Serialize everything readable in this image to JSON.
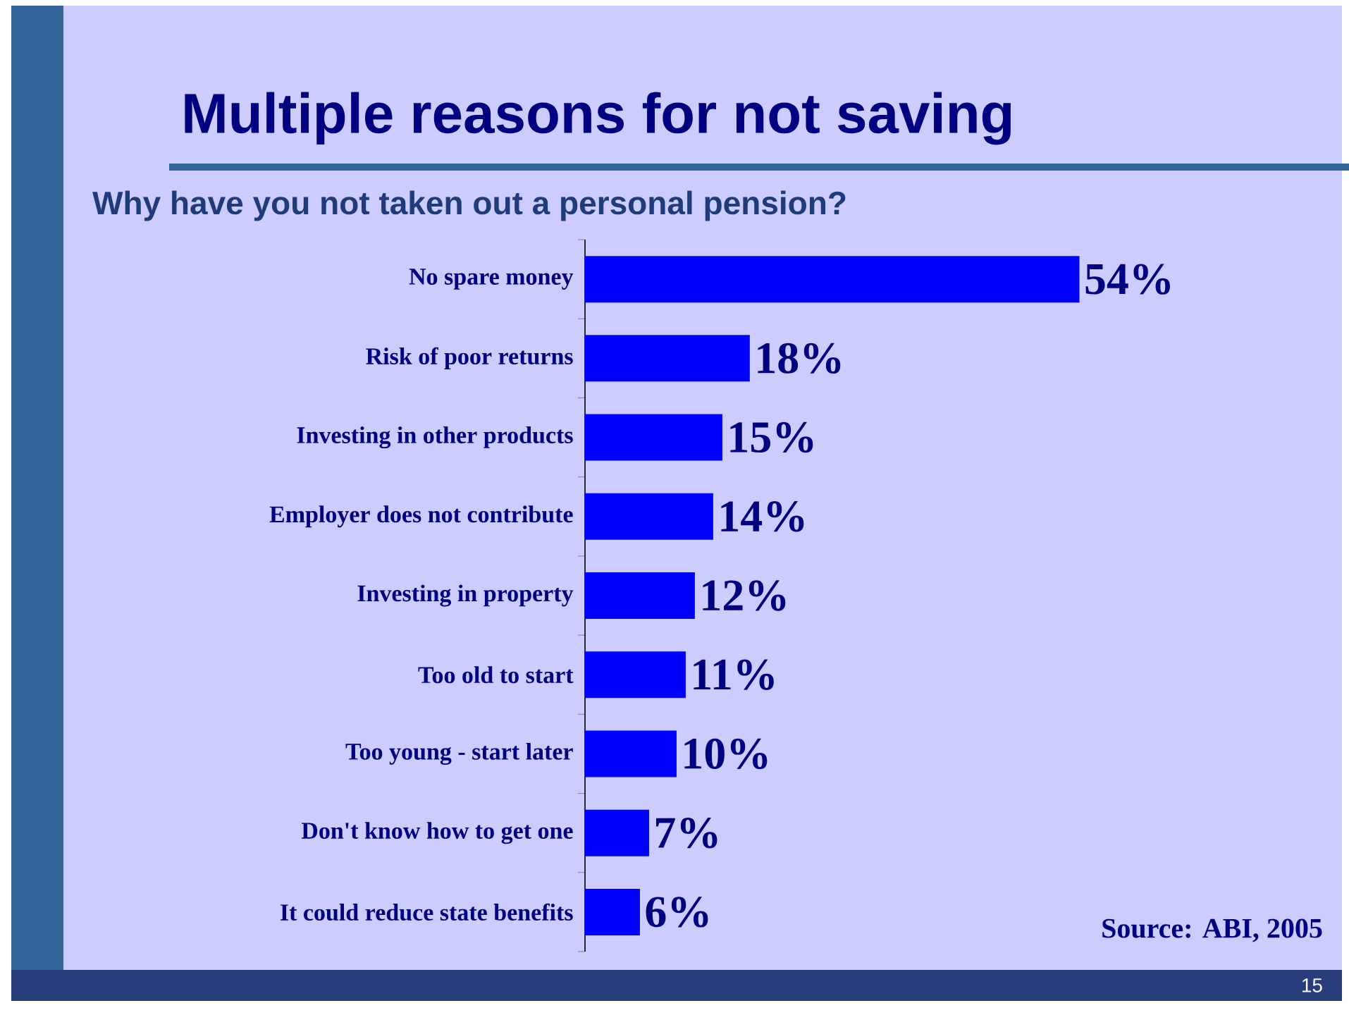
{
  "chart_data": {
    "type": "bar",
    "orientation": "horizontal",
    "title": "Multiple reasons for not saving",
    "subtitle": "Why have you not taken out a personal pension?",
    "categories": [
      "No spare money",
      "Risk of poor returns",
      "Investing in other products",
      "Employer does not contribute",
      "Investing in property",
      "Too old to start",
      "Too young - start later",
      "Don't know how to get one",
      "It could reduce state benefits"
    ],
    "values": [
      54,
      18,
      15,
      14,
      12,
      11,
      10,
      7,
      6
    ],
    "value_labels": [
      "54%",
      "18%",
      "15%",
      "14%",
      "12%",
      "11%",
      "10%",
      "7%",
      "6%"
    ],
    "color": "#0000ff",
    "tick_labels": "y",
    "annotations": [
      "Source: ABI, 2005",
      "15"
    ]
  }
}
